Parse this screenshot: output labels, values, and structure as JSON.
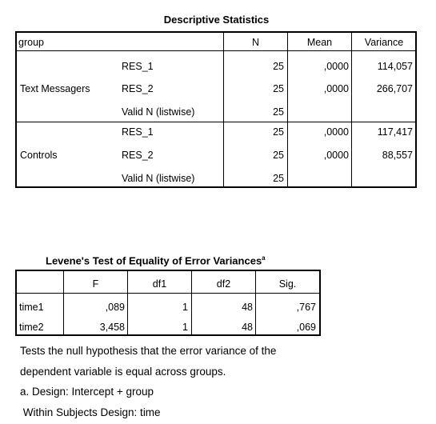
{
  "desc": {
    "title": "Descriptive Statistics",
    "headers": {
      "group": "group",
      "n": "N",
      "mean": "Mean",
      "variance": "Variance"
    },
    "groups": [
      {
        "label": "Text Messagers",
        "rows": [
          {
            "var": "RES_1",
            "n": "25",
            "mean": ",0000",
            "variance": "114,057"
          },
          {
            "var": "RES_2",
            "n": "25",
            "mean": ",0000",
            "variance": "266,707"
          },
          {
            "var": "Valid N (listwise)",
            "n": "25",
            "mean": "",
            "variance": ""
          }
        ]
      },
      {
        "label": "Controls",
        "rows": [
          {
            "var": "RES_1",
            "n": "25",
            "mean": ",0000",
            "variance": "117,417"
          },
          {
            "var": "RES_2",
            "n": "25",
            "mean": ",0000",
            "variance": "88,557"
          },
          {
            "var": "Valid N (listwise)",
            "n": "25",
            "mean": "",
            "variance": ""
          }
        ]
      }
    ]
  },
  "levene": {
    "title": "Levene's Test of Equality of Error Variances",
    "title_sup": "a",
    "headers": {
      "f": "F",
      "df1": "df1",
      "df2": "df2",
      "sig": "Sig."
    },
    "rows": [
      {
        "label": "time1",
        "f": ",089",
        "df1": "1",
        "df2": "48",
        "sig": ",767"
      },
      {
        "label": "time2",
        "f": "3,458",
        "df1": "1",
        "df2": "48",
        "sig": ",069"
      }
    ],
    "notes": [
      "Tests the null hypothesis that the error variance of the",
      "dependent variable is equal across groups.",
      "a. Design: Intercept + group",
      " Within Subjects Design: time"
    ]
  }
}
